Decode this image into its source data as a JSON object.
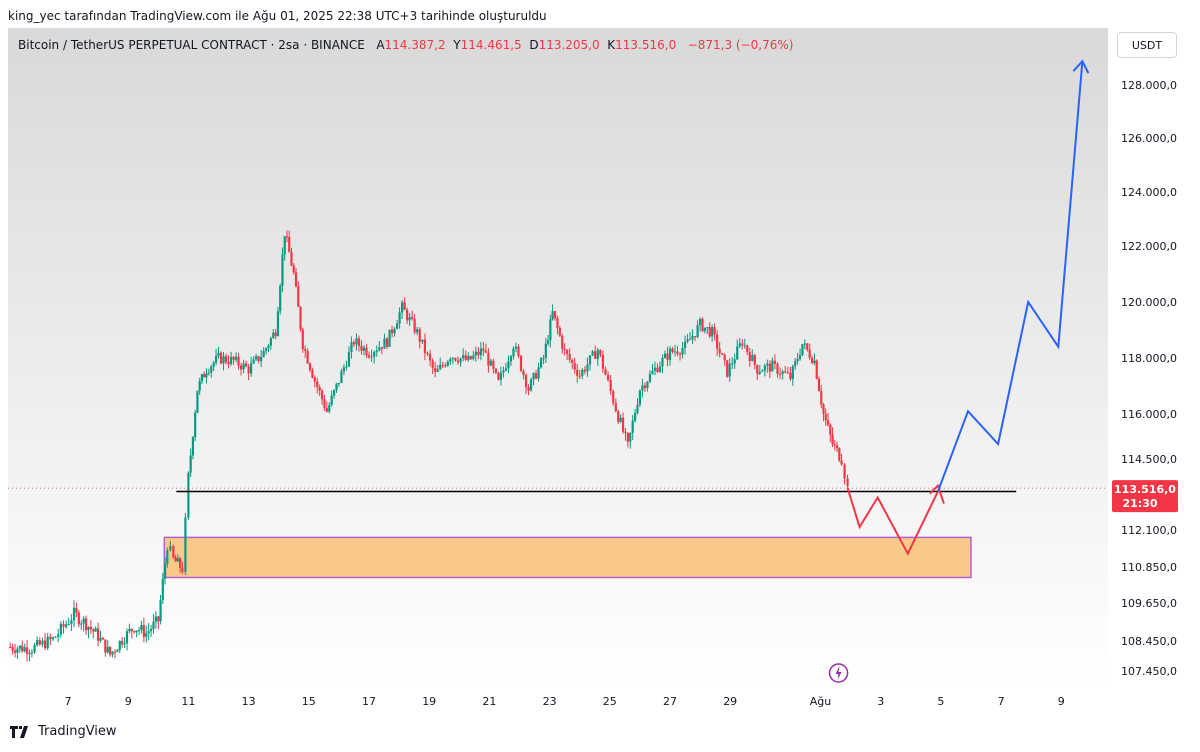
{
  "caption": "king_yec tarafından TradingView.com ile Ağu 01, 2025 22:38 UTC+3 tarihinde oluşturuldu",
  "legend": {
    "symbol": "Bitcoin / TetherUS PERPETUAL CONTRACT · 2sa · BINANCE",
    "open_label": "A",
    "open": "114.387,2",
    "high_label": "Y",
    "high": "114.461,5",
    "low_label": "D",
    "low": "113.205,0",
    "close_label": "K",
    "close": "113.516,0",
    "change": "−871,3 (−0,76%)"
  },
  "currency_button": "USDT",
  "footer": {
    "brand": "TradingView"
  },
  "colors": {
    "up": "#089981",
    "down": "#f23645",
    "forecast_up": "#2962ff",
    "forecast_down": "#f23645",
    "zone_fill": "#f9c98a",
    "zone_border": "#b161d6",
    "support_line": "#000000",
    "current_price": "#f23645"
  },
  "chart_data": {
    "type": "candlestick",
    "title": "Bitcoin / TetherUS PERPETUAL CONTRACT · 2sa · BINANCE",
    "y_axis": {
      "ticks": [
        128000,
        126000,
        124000,
        122000,
        120000,
        118000,
        116000,
        114500,
        112100,
        110850,
        109650,
        108450,
        107450
      ],
      "tick_labels": [
        "128.000,0",
        "126.000,0",
        "124.000,0",
        "122.000,0",
        "120.000,0",
        "118.000,0",
        "116.000,0",
        "114.500,0",
        "112.100,0",
        "110.850,0",
        "109.650,0",
        "108.450,0",
        "107.450,0"
      ],
      "position": "right"
    },
    "x_axis": {
      "tick_labels": [
        "7",
        "9",
        "11",
        "13",
        "15",
        "17",
        "19",
        "21",
        "23",
        "25",
        "27",
        "29",
        "Ağu",
        "3",
        "5",
        "7",
        "9"
      ],
      "tick_days": [
        7,
        9,
        11,
        13,
        15,
        17,
        19,
        21,
        23,
        25,
        27,
        29,
        32,
        34,
        36,
        38,
        40
      ],
      "unit": "day (July 2025, continuing into August)"
    },
    "price_path": [
      [
        5.0,
        108250
      ],
      [
        5.8,
        108200
      ],
      [
        6.5,
        108500
      ],
      [
        7.2,
        109300
      ],
      [
        7.6,
        109000
      ],
      [
        8.0,
        108600
      ],
      [
        8.4,
        108000
      ],
      [
        8.8,
        108500
      ],
      [
        9.2,
        108900
      ],
      [
        9.6,
        108700
      ],
      [
        10.0,
        109100
      ],
      [
        10.3,
        111600
      ],
      [
        10.5,
        111100
      ],
      [
        10.8,
        110800
      ],
      [
        11.0,
        113900
      ],
      [
        11.3,
        116900
      ],
      [
        11.6,
        117600
      ],
      [
        12.0,
        118000
      ],
      [
        12.5,
        117900
      ],
      [
        13.0,
        117600
      ],
      [
        13.5,
        118200
      ],
      [
        13.9,
        119000
      ],
      [
        14.2,
        122500
      ],
      [
        14.5,
        121000
      ],
      [
        14.8,
        118500
      ],
      [
        15.2,
        117200
      ],
      [
        15.6,
        116100
      ],
      [
        16.0,
        117200
      ],
      [
        16.5,
        118600
      ],
      [
        17.0,
        118200
      ],
      [
        17.6,
        118600
      ],
      [
        18.1,
        119800
      ],
      [
        18.6,
        118900
      ],
      [
        19.2,
        117400
      ],
      [
        19.7,
        118100
      ],
      [
        20.3,
        117900
      ],
      [
        20.8,
        118300
      ],
      [
        21.3,
        117100
      ],
      [
        21.8,
        118500
      ],
      [
        22.3,
        116900
      ],
      [
        22.8,
        118000
      ],
      [
        23.1,
        119600
      ],
      [
        23.5,
        118200
      ],
      [
        24.0,
        117400
      ],
      [
        24.6,
        118300
      ],
      [
        25.2,
        116200
      ],
      [
        25.6,
        114900
      ],
      [
        26.0,
        116900
      ],
      [
        26.5,
        117600
      ],
      [
        27.0,
        118200
      ],
      [
        27.5,
        118400
      ],
      [
        28.0,
        119200
      ],
      [
        28.4,
        118900
      ],
      [
        28.9,
        117500
      ],
      [
        29.4,
        118600
      ],
      [
        29.9,
        117600
      ],
      [
        30.4,
        117700
      ],
      [
        31.0,
        117300
      ],
      [
        31.4,
        118500
      ],
      [
        31.8,
        117900
      ],
      [
        32.1,
        116000
      ],
      [
        32.4,
        115000
      ],
      [
        32.7,
        114500
      ],
      [
        32.9,
        113516
      ]
    ],
    "last_price": 113516.0,
    "last_price_label": "113.516,0",
    "countdown_label": "21:30",
    "support_level": 113400,
    "demand_zone": {
      "y_low": 110500,
      "y_high": 111850,
      "x_start": 10.2,
      "x_end": 37.0
    },
    "forecast_down_path": [
      [
        32.9,
        113516
      ],
      [
        33.3,
        112200
      ],
      [
        33.9,
        113200
      ],
      [
        34.9,
        111300
      ],
      [
        35.9,
        113400
      ]
    ],
    "forecast_up_path": [
      [
        35.9,
        113400
      ],
      [
        36.9,
        116100
      ],
      [
        37.9,
        115000
      ],
      [
        38.9,
        120000
      ],
      [
        39.9,
        118400
      ],
      [
        40.7,
        128900
      ]
    ],
    "events_icon": "lightning-icon",
    "grid": false
  }
}
